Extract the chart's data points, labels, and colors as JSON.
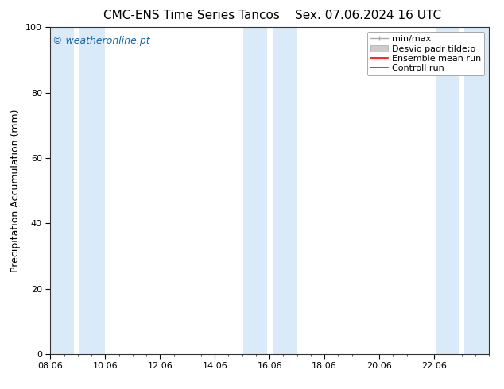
{
  "title_left": "CMC-ENS Time Series Tancos",
  "title_right": "Sex. 07.06.2024 16 UTC",
  "ylabel": "Precipitation Accumulation (mm)",
  "ylim": [
    0,
    100
  ],
  "yticks": [
    0,
    20,
    40,
    60,
    80,
    100
  ],
  "xlim": [
    0,
    16
  ],
  "xtick_labels": [
    "08.06",
    "10.06",
    "12.06",
    "14.06",
    "16.06",
    "18.06",
    "20.06",
    "22.06"
  ],
  "xtick_positions": [
    0,
    2,
    4,
    6,
    8,
    10,
    12,
    14
  ],
  "bg_color": "#ffffff",
  "plot_bg_color": "#ffffff",
  "shade_color": "#daeaf8",
  "shade_bands": [
    [
      0.0,
      0.85
    ],
    [
      1.05,
      2.0
    ],
    [
      7.05,
      7.9
    ],
    [
      8.1,
      9.0
    ],
    [
      14.05,
      14.9
    ],
    [
      15.1,
      16.0
    ]
  ],
  "legend_labels": [
    "min/max",
    "Desvio padr tilde;o",
    "Ensemble mean run",
    "Controll run"
  ],
  "legend_colors": [
    "#aaaaaa",
    "#cccccc",
    "#ff0000",
    "#008800"
  ],
  "watermark": "© weatheronline.pt",
  "watermark_color": "#1a6aaa",
  "watermark_fontsize": 9,
  "title_fontsize": 11,
  "axis_label_fontsize": 9,
  "tick_fontsize": 8,
  "legend_fontsize": 8
}
